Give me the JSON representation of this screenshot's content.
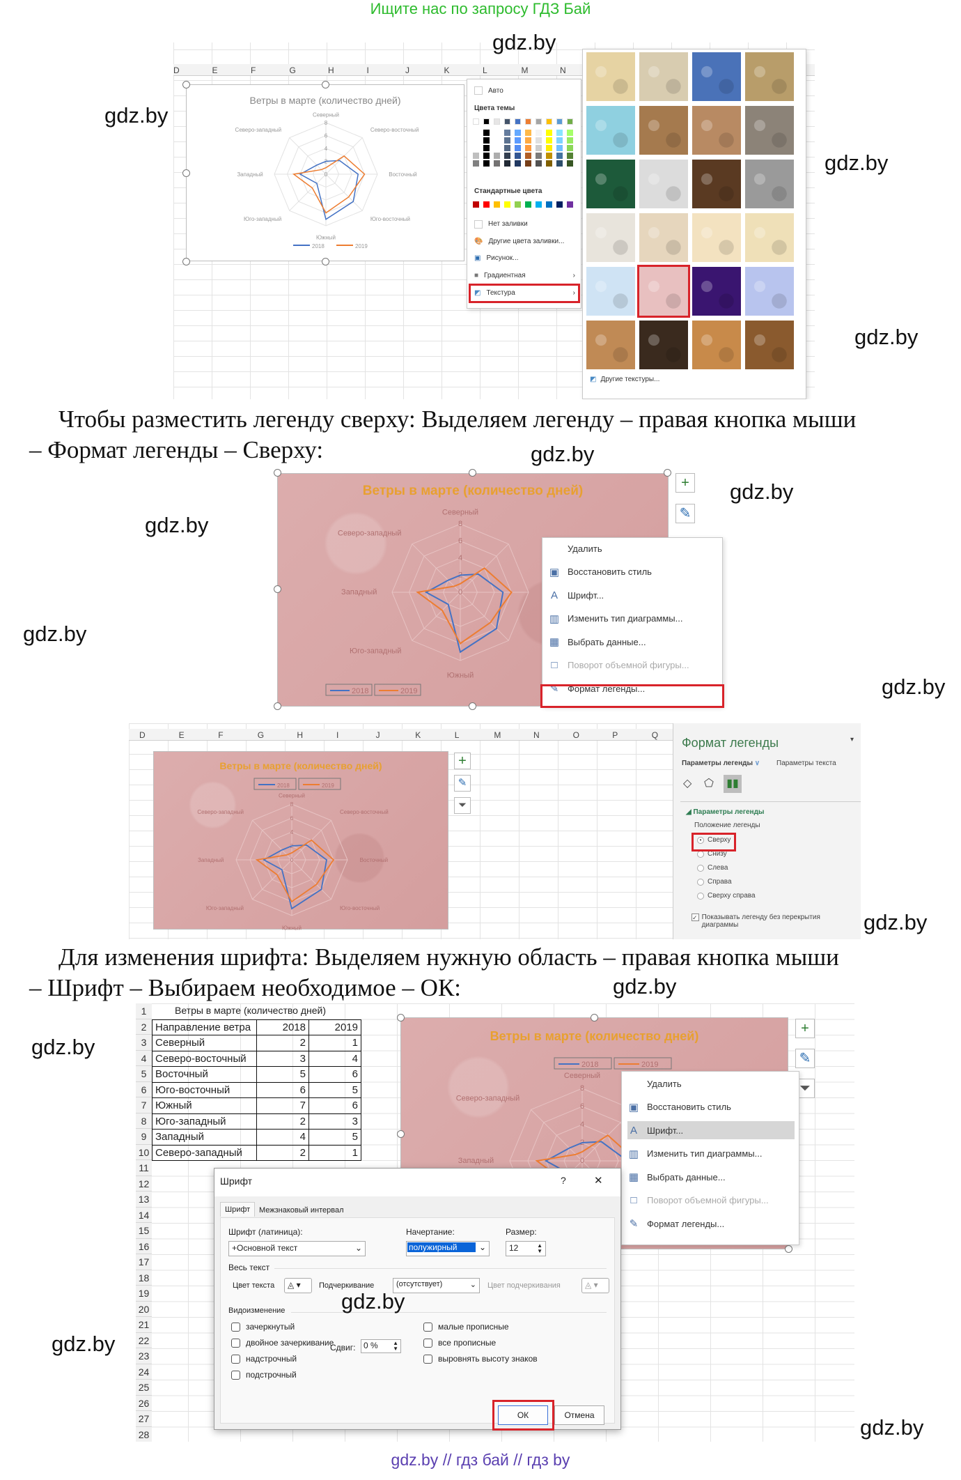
{
  "header_note": "Ищите нас по запросу ГДЗ Бай",
  "watermark": "gdz.by",
  "footer": "gdz.by  //  гдз бай  //  гдз by",
  "paragraphs": [
    {
      "line1": "Чтобы разместить легенду сверху: Выделяем легенду – правая кнопка мыши",
      "line2": "– Формат легенды – Сверху:"
    },
    {
      "line1": "Для изменения шрифта: Выделяем нужную область – правая кнопка мыши",
      "line2": "– Шрифт – Выбираем необходимое – ОК:"
    }
  ],
  "columns_1": [
    "D",
    "E",
    "F",
    "G",
    "H",
    "I",
    "J",
    "K",
    "L",
    "M",
    "N"
  ],
  "columns_3": [
    "D",
    "E",
    "F",
    "G",
    "H",
    "I",
    "J",
    "K",
    "L",
    "M",
    "N",
    "O",
    "P",
    "Q"
  ],
  "chart_data": {
    "type": "radar",
    "title": "Ветры в марте (количество дней)",
    "categories": [
      "Северный",
      "Северо-восточный",
      "Восточный",
      "Юго-восточный",
      "Южный",
      "Юго-западный",
      "Западный",
      "Северо-западный"
    ],
    "series": [
      {
        "name": "2018",
        "values": [
          2,
          3,
          5,
          6,
          7,
          2,
          4,
          2
        ],
        "color": "#4472c4"
      },
      {
        "name": "2019",
        "values": [
          1,
          4,
          6,
          5,
          6,
          3,
          5,
          1
        ],
        "color": "#ed7d31"
      }
    ],
    "ylim": [
      0,
      8
    ],
    "ticks": [
      "0",
      "2",
      "4",
      "6",
      "8"
    ],
    "grid": true
  },
  "fill_menu": {
    "auto": "Авто",
    "theme_colors": "Цвета темы",
    "theme_swatches": [
      "#ffffff",
      "#000000",
      "#e7e6e6",
      "#44546a",
      "#4472c4",
      "#ed7d31",
      "#a5a5a5",
      "#ffc000",
      "#5b9bd5",
      "#70ad47"
    ],
    "standard_colors": "Стандартные цвета",
    "standard_swatches": [
      "#c00000",
      "#ff0000",
      "#ffc000",
      "#ffff00",
      "#92d050",
      "#00b050",
      "#00b0f0",
      "#0070c0",
      "#002060",
      "#7030a0"
    ],
    "no_fill": "Нет заливки",
    "more_colors": "Другие цвета заливки...",
    "picture": "Рисунок...",
    "gradient": "Градиентная",
    "texture": "Текстура"
  },
  "texture_gallery": {
    "tiles": [
      "#e6d3a3",
      "#d8ccb0",
      "#4a72b8",
      "#b89d6a",
      "#8fd0e0",
      "#a57a4e",
      "#b88a63",
      "#8c8378",
      "#1d5a3a",
      "#dcdcdc",
      "#5a3a22",
      "#9a9a9a",
      "#e8e4dc",
      "#e6d6bd",
      "#f3e2c0",
      "#efe0b8",
      "#cfe3f4",
      "#e8c0c0",
      "#3a1570",
      "#b8c4ee",
      "#c08a55",
      "#3a2a1e",
      "#c88a4a",
      "#8a5a2e"
    ],
    "selected_index": 17,
    "more": "Другие текстуры..."
  },
  "context_menu": {
    "items": [
      "Удалить",
      "Восстановить стиль",
      "Шрифт...",
      "Изменить тип диаграммы...",
      "Выбрать данные...",
      "Поворот объемной фигуры...",
      "Формат легенды..."
    ]
  },
  "chart_buttons": {
    "add": "+",
    "style": "brush",
    "filter": "filter"
  },
  "format_pane": {
    "title": "Формат легенды",
    "tab_legend": "Параметры легенды",
    "tab_text": "Параметры текста",
    "section": "Параметры легенды",
    "position_label": "Положение легенды",
    "positions": [
      "Сверху",
      "Снизу",
      "Слева",
      "Справа",
      "Сверху справа"
    ],
    "selected_position": "Сверху",
    "no_overlap": "Показывать легенду без перекрытия диаграммы",
    "no_overlap_checked": true
  },
  "sheet": {
    "title": "Ветры в марте (количество дней)",
    "headers": [
      "Направление ветра",
      "2018",
      "2019"
    ],
    "rows": [
      [
        "Северный",
        "2",
        "1"
      ],
      [
        "Северо-восточный",
        "3",
        "4"
      ],
      [
        "Восточный",
        "5",
        "6"
      ],
      [
        "Юго-восточный",
        "6",
        "5"
      ],
      [
        "Южный",
        "7",
        "6"
      ],
      [
        "Юго-западный",
        "2",
        "3"
      ],
      [
        "Западный",
        "4",
        "5"
      ],
      [
        "Северо-западный",
        "2",
        "1"
      ]
    ],
    "row_numbers": [
      "1",
      "2",
      "3",
      "4",
      "5",
      "6",
      "7",
      "8",
      "9",
      "10",
      "11",
      "12",
      "13",
      "14",
      "15",
      "16",
      "17",
      "18",
      "19",
      "20",
      "21",
      "22",
      "23",
      "24",
      "25",
      "26",
      "27",
      "28"
    ]
  },
  "font_dialog": {
    "title": "Шрифт",
    "help": "?",
    "close": "✕",
    "tab_font": "Шрифт",
    "tab_spacing": "Межзнаковый интервал",
    "latin_label": "Шрифт (латиница):",
    "latin_value": "+Основной текст",
    "style_label": "Начертание:",
    "style_value": "полужирный",
    "size_label": "Размер:",
    "size_value": "12",
    "all_text": "Весь текст",
    "text_color": "Цвет текста",
    "underline": "Подчеркивание",
    "underline_value": "(отсутствует)",
    "underline_color": "Цвет подчеркивания",
    "effects": "Видоизменение",
    "effects_left": [
      "зачеркнутый",
      "двойное зачеркивание",
      "надстрочный",
      "подстрочный"
    ],
    "effects_right": [
      "малые прописные",
      "все прописные",
      "выровнять высоту знаков"
    ],
    "offset_label": "Сдвиг:",
    "offset_value": "0 %",
    "ok": "ОК",
    "cancel": "Отмена"
  }
}
